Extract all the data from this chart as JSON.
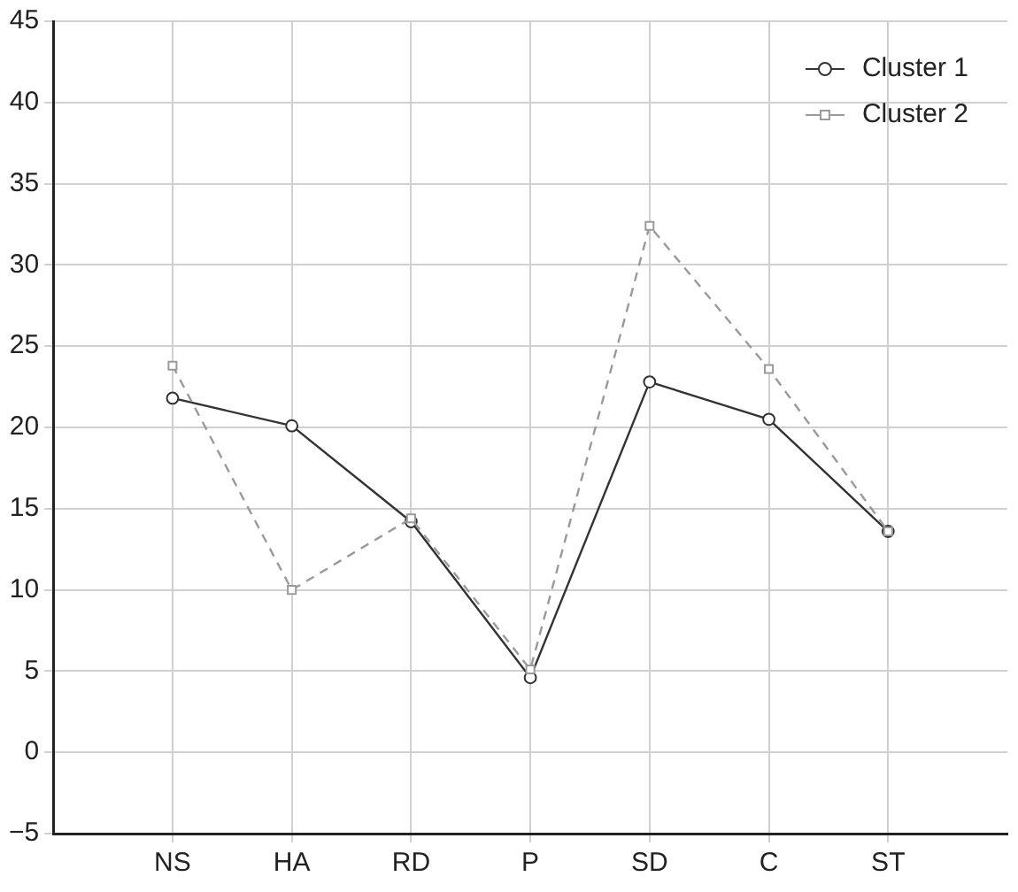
{
  "chart_data": {
    "type": "line",
    "categories": [
      "NS",
      "HA",
      "RD",
      "P",
      "SD",
      "C",
      "ST"
    ],
    "series": [
      {
        "name": "Cluster 1",
        "color": "#333333",
        "marker": "circle",
        "line_style": "solid",
        "values": [
          21.8,
          20.1,
          14.2,
          4.6,
          22.8,
          20.5,
          13.6
        ]
      },
      {
        "name": "Cluster 2",
        "color": "#9a9a9a",
        "marker": "square",
        "line_style": "dashed",
        "values": [
          23.8,
          10.0,
          14.4,
          5.1,
          32.4,
          23.6,
          13.6
        ]
      }
    ],
    "ylim": [
      -5,
      45
    ],
    "yticks": [
      {
        "value": -5,
        "label": "−5"
      },
      0,
      5,
      10,
      15,
      20,
      25,
      30,
      35,
      40,
      45
    ],
    "grid": true,
    "legend": "top right"
  }
}
